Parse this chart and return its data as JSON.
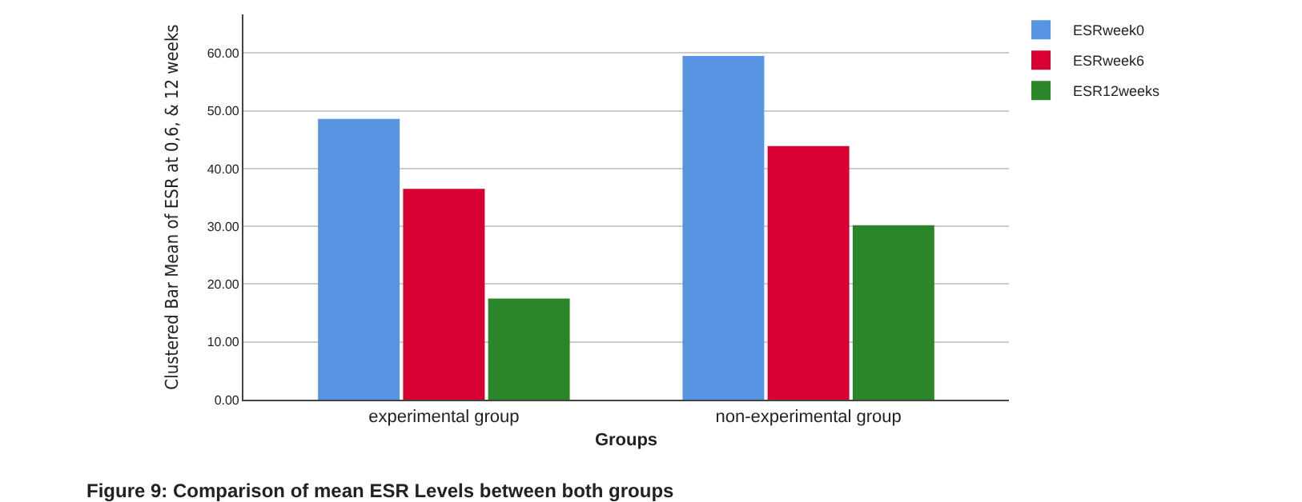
{
  "chart_data": {
    "type": "bar",
    "xlabel": "Groups",
    "ylabel": "Clustered Bar Mean of ESR at 0,6, & 12 weeks",
    "categories": [
      "experimental group",
      "non-experimental group"
    ],
    "series": [
      {
        "name": "ESRweek0",
        "color": "#5795e3",
        "values": [
          48.6,
          59.5
        ]
      },
      {
        "name": "ESRweek6",
        "color": "#d80032",
        "values": [
          36.5,
          43.9
        ]
      },
      {
        "name": "ESR12weeks",
        "color": "#2a8628",
        "values": [
          17.5,
          30.2
        ]
      }
    ],
    "ylim": [
      0,
      66.7
    ],
    "yticks": [
      {
        "value": 0,
        "label": "0.00"
      },
      {
        "value": 10,
        "label": "10.00"
      },
      {
        "value": 20,
        "label": "20.00"
      },
      {
        "value": 30,
        "label": "30.00"
      },
      {
        "value": 40,
        "label": "40.00"
      },
      {
        "value": 50,
        "label": "50.00"
      },
      {
        "value": 60,
        "label": "60.00"
      }
    ],
    "grid": "y",
    "legend": "top right",
    "annotations": [
      "Figure 9: Comparison of mean ESR Levels between both groups"
    ]
  }
}
